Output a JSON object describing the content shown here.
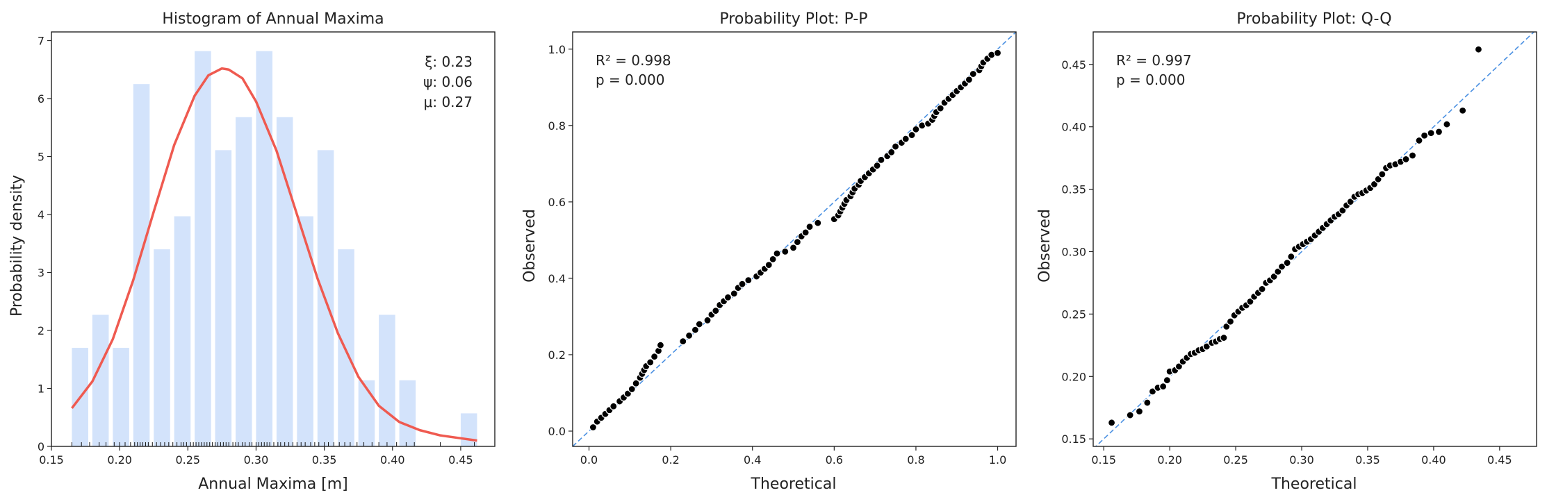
{
  "chart_data": [
    {
      "type": "bar",
      "title": "Histogram of Annual Maxima",
      "xlabel": "Annual Maxima [m]",
      "ylabel": "Probability density",
      "xlim": [
        0.15,
        0.475
      ],
      "ylim": [
        0,
        7.15
      ],
      "xticks": [
        "0.15",
        "0.20",
        "0.25",
        "0.30",
        "0.35",
        "0.40",
        "0.45"
      ],
      "yticks": [
        "0",
        "1",
        "2",
        "3",
        "4",
        "5",
        "6",
        "7"
      ],
      "bar_color": "#d3e3fb",
      "bars": [
        {
          "x0": 0.165,
          "x1": 0.177,
          "height": 1.7
        },
        {
          "x0": 0.18,
          "x1": 0.192,
          "height": 2.27
        },
        {
          "x0": 0.195,
          "x1": 0.207,
          "height": 1.7
        },
        {
          "x0": 0.21,
          "x1": 0.222,
          "height": 6.25
        },
        {
          "x0": 0.225,
          "x1": 0.237,
          "height": 3.4
        },
        {
          "x0": 0.24,
          "x1": 0.252,
          "height": 3.97
        },
        {
          "x0": 0.255,
          "x1": 0.267,
          "height": 6.82
        },
        {
          "x0": 0.27,
          "x1": 0.282,
          "height": 5.11
        },
        {
          "x0": 0.285,
          "x1": 0.297,
          "height": 5.68
        },
        {
          "x0": 0.3,
          "x1": 0.312,
          "height": 6.82
        },
        {
          "x0": 0.315,
          "x1": 0.327,
          "height": 5.68
        },
        {
          "x0": 0.33,
          "x1": 0.342,
          "height": 3.97
        },
        {
          "x0": 0.345,
          "x1": 0.357,
          "height": 5.11
        },
        {
          "x0": 0.36,
          "x1": 0.372,
          "height": 3.4
        },
        {
          "x0": 0.375,
          "x1": 0.387,
          "height": 1.14
        },
        {
          "x0": 0.39,
          "x1": 0.402,
          "height": 2.27
        },
        {
          "x0": 0.405,
          "x1": 0.417,
          "height": 1.14
        },
        {
          "x0": 0.45,
          "x1": 0.462,
          "height": 0.57
        }
      ],
      "curve": {
        "color": "#ef5a50",
        "points": [
          [
            0.165,
            0.66
          ],
          [
            0.18,
            1.12
          ],
          [
            0.195,
            1.85
          ],
          [
            0.21,
            2.87
          ],
          [
            0.225,
            4.05
          ],
          [
            0.24,
            5.2
          ],
          [
            0.255,
            6.05
          ],
          [
            0.265,
            6.4
          ],
          [
            0.275,
            6.52
          ],
          [
            0.28,
            6.5
          ],
          [
            0.29,
            6.35
          ],
          [
            0.3,
            5.95
          ],
          [
            0.315,
            5.1
          ],
          [
            0.33,
            4.0
          ],
          [
            0.345,
            2.9
          ],
          [
            0.36,
            1.95
          ],
          [
            0.375,
            1.2
          ],
          [
            0.39,
            0.7
          ],
          [
            0.405,
            0.42
          ],
          [
            0.42,
            0.28
          ],
          [
            0.435,
            0.19
          ],
          [
            0.45,
            0.14
          ],
          [
            0.462,
            0.1
          ]
        ]
      },
      "rug": [
        0.165,
        0.172,
        0.178,
        0.185,
        0.19,
        0.196,
        0.2,
        0.204,
        0.208,
        0.211,
        0.213,
        0.215,
        0.217,
        0.219,
        0.221,
        0.224,
        0.227,
        0.23,
        0.233,
        0.236,
        0.239,
        0.242,
        0.245,
        0.247,
        0.249,
        0.252,
        0.254,
        0.256,
        0.258,
        0.26,
        0.262,
        0.264,
        0.266,
        0.268,
        0.27,
        0.272,
        0.274,
        0.276,
        0.278,
        0.28,
        0.283,
        0.285,
        0.287,
        0.29,
        0.292,
        0.295,
        0.297,
        0.3,
        0.302,
        0.304,
        0.306,
        0.308,
        0.31,
        0.313,
        0.316,
        0.318,
        0.321,
        0.324,
        0.327,
        0.33,
        0.333,
        0.336,
        0.34,
        0.343,
        0.346,
        0.35,
        0.353,
        0.357,
        0.361,
        0.365,
        0.369,
        0.374,
        0.379,
        0.385,
        0.39,
        0.396,
        0.403,
        0.41,
        0.416,
        0.435,
        0.46
      ],
      "params": [
        "ξ: 0.23",
        "ψ: 0.06",
        "μ: 0.27"
      ]
    },
    {
      "type": "scatter",
      "title": "Probability Plot: P-P",
      "xlabel": "Theoretical",
      "ylabel": "Observed",
      "xlim": [
        -0.04,
        1.045
      ],
      "ylim": [
        -0.04,
        1.045
      ],
      "xticks": [
        "0.0",
        "0.2",
        "0.4",
        "0.6",
        "0.8",
        "1.0"
      ],
      "yticks": [
        "0.0",
        "0.2",
        "0.4",
        "0.6",
        "0.8",
        "1.0"
      ],
      "annotations": [
        "R² = 0.998",
        "p = 0.000"
      ],
      "reference_line": [
        [
          -0.04,
          -0.04
        ],
        [
          1.045,
          1.045
        ]
      ],
      "points": [
        [
          0.01,
          0.01
        ],
        [
          0.02,
          0.025
        ],
        [
          0.03,
          0.035
        ],
        [
          0.04,
          0.045
        ],
        [
          0.05,
          0.055
        ],
        [
          0.06,
          0.065
        ],
        [
          0.075,
          0.078
        ],
        [
          0.085,
          0.088
        ],
        [
          0.095,
          0.098
        ],
        [
          0.105,
          0.11
        ],
        [
          0.115,
          0.125
        ],
        [
          0.125,
          0.14
        ],
        [
          0.13,
          0.15
        ],
        [
          0.135,
          0.16
        ],
        [
          0.14,
          0.17
        ],
        [
          0.15,
          0.18
        ],
        [
          0.16,
          0.195
        ],
        [
          0.17,
          0.21
        ],
        [
          0.175,
          0.225
        ],
        [
          0.23,
          0.235
        ],
        [
          0.245,
          0.25
        ],
        [
          0.26,
          0.265
        ],
        [
          0.27,
          0.28
        ],
        [
          0.29,
          0.29
        ],
        [
          0.3,
          0.305
        ],
        [
          0.31,
          0.315
        ],
        [
          0.32,
          0.33
        ],
        [
          0.33,
          0.34
        ],
        [
          0.34,
          0.35
        ],
        [
          0.355,
          0.36
        ],
        [
          0.365,
          0.375
        ],
        [
          0.375,
          0.385
        ],
        [
          0.39,
          0.395
        ],
        [
          0.41,
          0.405
        ],
        [
          0.42,
          0.415
        ],
        [
          0.43,
          0.425
        ],
        [
          0.44,
          0.435
        ],
        [
          0.45,
          0.45
        ],
        [
          0.46,
          0.465
        ],
        [
          0.48,
          0.47
        ],
        [
          0.5,
          0.48
        ],
        [
          0.51,
          0.495
        ],
        [
          0.52,
          0.51
        ],
        [
          0.53,
          0.52
        ],
        [
          0.54,
          0.535
        ],
        [
          0.56,
          0.545
        ],
        [
          0.6,
          0.555
        ],
        [
          0.61,
          0.565
        ],
        [
          0.615,
          0.575
        ],
        [
          0.62,
          0.585
        ],
        [
          0.625,
          0.595
        ],
        [
          0.63,
          0.605
        ],
        [
          0.64,
          0.615
        ],
        [
          0.645,
          0.625
        ],
        [
          0.65,
          0.635
        ],
        [
          0.66,
          0.645
        ],
        [
          0.665,
          0.655
        ],
        [
          0.675,
          0.665
        ],
        [
          0.685,
          0.675
        ],
        [
          0.695,
          0.685
        ],
        [
          0.705,
          0.695
        ],
        [
          0.715,
          0.71
        ],
        [
          0.73,
          0.72
        ],
        [
          0.74,
          0.73
        ],
        [
          0.75,
          0.745
        ],
        [
          0.765,
          0.755
        ],
        [
          0.775,
          0.765
        ],
        [
          0.79,
          0.775
        ],
        [
          0.8,
          0.79
        ],
        [
          0.815,
          0.8
        ],
        [
          0.83,
          0.805
        ],
        [
          0.84,
          0.815
        ],
        [
          0.845,
          0.825
        ],
        [
          0.85,
          0.835
        ],
        [
          0.86,
          0.845
        ],
        [
          0.87,
          0.86
        ],
        [
          0.88,
          0.87
        ],
        [
          0.89,
          0.88
        ],
        [
          0.9,
          0.89
        ],
        [
          0.91,
          0.9
        ],
        [
          0.92,
          0.91
        ],
        [
          0.93,
          0.92
        ],
        [
          0.94,
          0.935
        ],
        [
          0.955,
          0.945
        ],
        [
          0.96,
          0.955
        ],
        [
          0.965,
          0.965
        ],
        [
          0.975,
          0.975
        ],
        [
          0.985,
          0.985
        ],
        [
          1.0,
          0.99
        ]
      ]
    },
    {
      "type": "scatter",
      "title": "Probability Plot: Q-Q",
      "xlabel": "Theoretical",
      "ylabel": "Observed",
      "xlim": [
        0.142,
        0.478
      ],
      "ylim": [
        0.144,
        0.476
      ],
      "xticks": [
        "0.15",
        "0.20",
        "0.25",
        "0.30",
        "0.35",
        "0.40",
        "0.45"
      ],
      "yticks": [
        "0.15",
        "0.20",
        "0.25",
        "0.30",
        "0.35",
        "0.40",
        "0.45"
      ],
      "annotations": [
        "R² = 0.997",
        "p = 0.000"
      ],
      "reference_line": [
        [
          0.142,
          0.142
        ],
        [
          0.478,
          0.478
        ]
      ],
      "points": [
        [
          0.156,
          0.163
        ],
        [
          0.17,
          0.169
        ],
        [
          0.177,
          0.172
        ],
        [
          0.183,
          0.179
        ],
        [
          0.187,
          0.188
        ],
        [
          0.191,
          0.191
        ],
        [
          0.195,
          0.192
        ],
        [
          0.198,
          0.197
        ],
        [
          0.2,
          0.204
        ],
        [
          0.204,
          0.205
        ],
        [
          0.207,
          0.208
        ],
        [
          0.21,
          0.212
        ],
        [
          0.213,
          0.215
        ],
        [
          0.216,
          0.218
        ],
        [
          0.219,
          0.219
        ],
        [
          0.222,
          0.221
        ],
        [
          0.225,
          0.222
        ],
        [
          0.228,
          0.224
        ],
        [
          0.232,
          0.227
        ],
        [
          0.235,
          0.228
        ],
        [
          0.238,
          0.23
        ],
        [
          0.241,
          0.231
        ],
        [
          0.243,
          0.24
        ],
        [
          0.246,
          0.244
        ],
        [
          0.249,
          0.249
        ],
        [
          0.252,
          0.252
        ],
        [
          0.255,
          0.255
        ],
        [
          0.258,
          0.257
        ],
        [
          0.261,
          0.26
        ],
        [
          0.264,
          0.264
        ],
        [
          0.267,
          0.267
        ],
        [
          0.27,
          0.27
        ],
        [
          0.273,
          0.275
        ],
        [
          0.276,
          0.277
        ],
        [
          0.279,
          0.28
        ],
        [
          0.282,
          0.284
        ],
        [
          0.285,
          0.288
        ],
        [
          0.289,
          0.291
        ],
        [
          0.292,
          0.296
        ],
        [
          0.295,
          0.302
        ],
        [
          0.298,
          0.304
        ],
        [
          0.301,
          0.306
        ],
        [
          0.304,
          0.308
        ],
        [
          0.307,
          0.31
        ],
        [
          0.31,
          0.313
        ],
        [
          0.313,
          0.316
        ],
        [
          0.316,
          0.319
        ],
        [
          0.319,
          0.322
        ],
        [
          0.322,
          0.325
        ],
        [
          0.325,
          0.328
        ],
        [
          0.328,
          0.33
        ],
        [
          0.331,
          0.333
        ],
        [
          0.334,
          0.337
        ],
        [
          0.337,
          0.34
        ],
        [
          0.34,
          0.344
        ],
        [
          0.343,
          0.346
        ],
        [
          0.346,
          0.347
        ],
        [
          0.349,
          0.349
        ],
        [
          0.352,
          0.351
        ],
        [
          0.355,
          0.354
        ],
        [
          0.358,
          0.358
        ],
        [
          0.361,
          0.362
        ],
        [
          0.364,
          0.367
        ],
        [
          0.367,
          0.369
        ],
        [
          0.371,
          0.37
        ],
        [
          0.375,
          0.372
        ],
        [
          0.379,
          0.374
        ],
        [
          0.384,
          0.377
        ],
        [
          0.389,
          0.389
        ],
        [
          0.393,
          0.393
        ],
        [
          0.398,
          0.395
        ],
        [
          0.404,
          0.396
        ],
        [
          0.41,
          0.402
        ],
        [
          0.422,
          0.413
        ],
        [
          0.434,
          0.462
        ]
      ]
    }
  ]
}
